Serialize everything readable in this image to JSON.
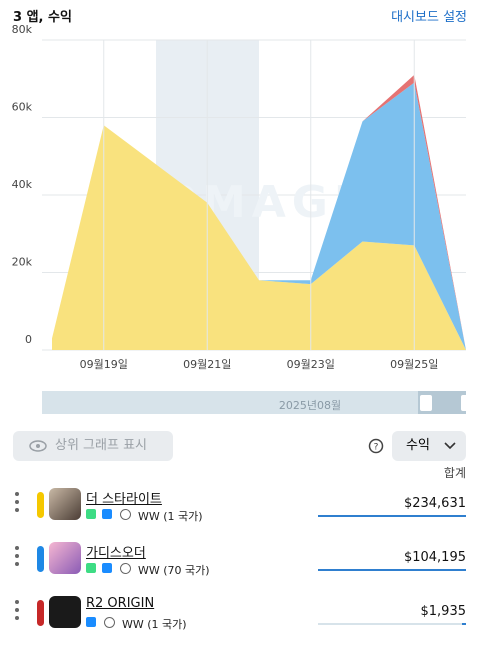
{
  "header": {
    "title": "3 앱, 수익",
    "link": "대시보드 설정"
  },
  "chart_data": {
    "type": "area",
    "watermark": "APPMAGIC",
    "categories": [
      null,
      "09월19일",
      null,
      "09월21일",
      null,
      "09월23일",
      null,
      "09월25일",
      null
    ],
    "series": [
      {
        "name": "더 스타라이트",
        "color": "#f9e27e",
        "values": [
          3000,
          58000,
          48000,
          38000,
          18000,
          17000,
          28000,
          27000,
          0
        ]
      },
      {
        "name": "가디스오더",
        "color": "#7cc0ee",
        "values": [
          0,
          0,
          0,
          0,
          0,
          1000,
          31000,
          42000,
          0
        ]
      },
      {
        "name": "R2 ORIGIN",
        "color": "#e57373",
        "values": [
          0,
          0,
          0,
          0,
          0,
          0,
          0,
          2000,
          0
        ]
      }
    ],
    "ylim": [
      0,
      80000
    ],
    "yticks": [
      0,
      {
        "value": 20000,
        "label": "20k"
      },
      {
        "value": 40000,
        "label": "40k"
      },
      {
        "value": 60000,
        "label": "60k"
      },
      {
        "value": 80000,
        "label": "80k"
      }
    ],
    "grid": true,
    "stacked": true,
    "scroll_label": "2025년08월"
  },
  "controls": {
    "toggle": "상위 그래프 표시",
    "metric": "수익",
    "total_header": "합계"
  },
  "rows": [
    {
      "name": "더 스타라이트",
      "region": "WW (1 국가)",
      "total": "$234,631"
    },
    {
      "name": "가디스오더",
      "region": "WW (70 국가)",
      "total": "$104,195"
    },
    {
      "name": "R2 ORIGIN",
      "region": "WW (1 국가)",
      "total": "$1,935"
    }
  ]
}
